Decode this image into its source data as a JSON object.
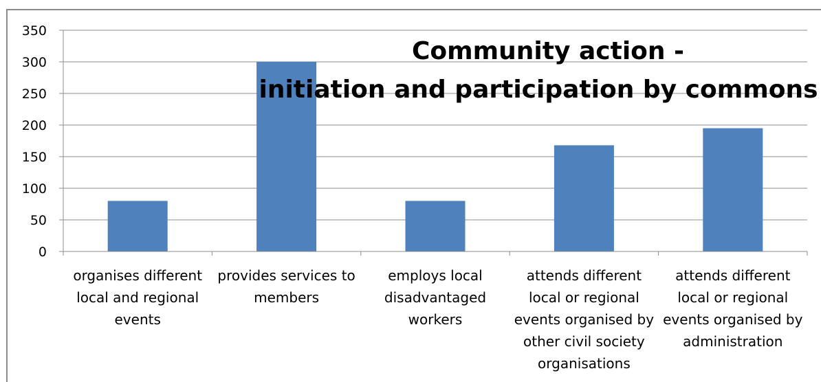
{
  "chart_data": {
    "type": "bar",
    "title": "Community action - initiation and participation by commons",
    "title_lines": [
      "Community action -",
      "initiation and participation by commons"
    ],
    "categories": [
      [
        "organises different",
        "local and regional",
        "events"
      ],
      [
        "provides services to",
        "members"
      ],
      [
        "employs local",
        "disadvantaged",
        "workers"
      ],
      [
        "attends different",
        "local or regional",
        "events organised by",
        "other civil society",
        "organisations"
      ],
      [
        "attends different",
        "local or regional",
        "events organised by",
        "administration"
      ]
    ],
    "values": [
      80,
      300,
      80,
      168,
      195
    ],
    "ylim": [
      0,
      350
    ],
    "yticks": [
      0,
      50,
      100,
      150,
      200,
      250,
      300,
      350
    ],
    "grid": true,
    "bar_color": "#4f81bd",
    "grid_color": "#8c8c8c"
  }
}
